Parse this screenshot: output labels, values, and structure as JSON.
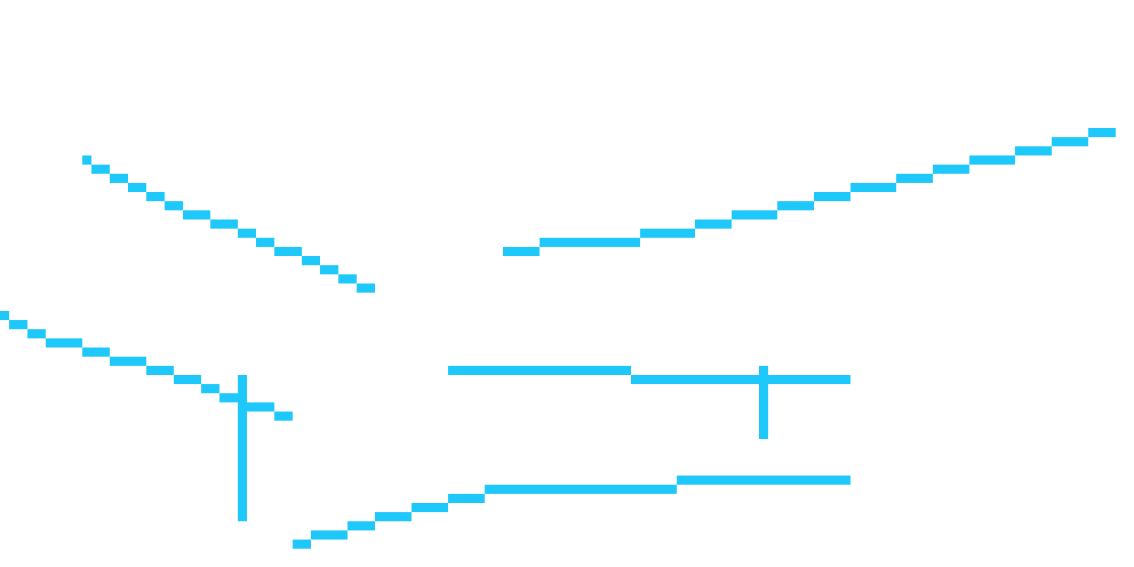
{
  "canvas": {
    "background": "#ffffff",
    "stroke_color": "#1EC8FA"
  },
  "strokes": [
    {
      "name": "stroke-upper-left-descending"
    },
    {
      "name": "stroke-upper-right-ascending"
    },
    {
      "name": "stroke-lower-left-descending-with-vertical"
    },
    {
      "name": "stroke-middle-horizontal-with-vertical"
    },
    {
      "name": "stroke-bottom-ascending"
    }
  ]
}
